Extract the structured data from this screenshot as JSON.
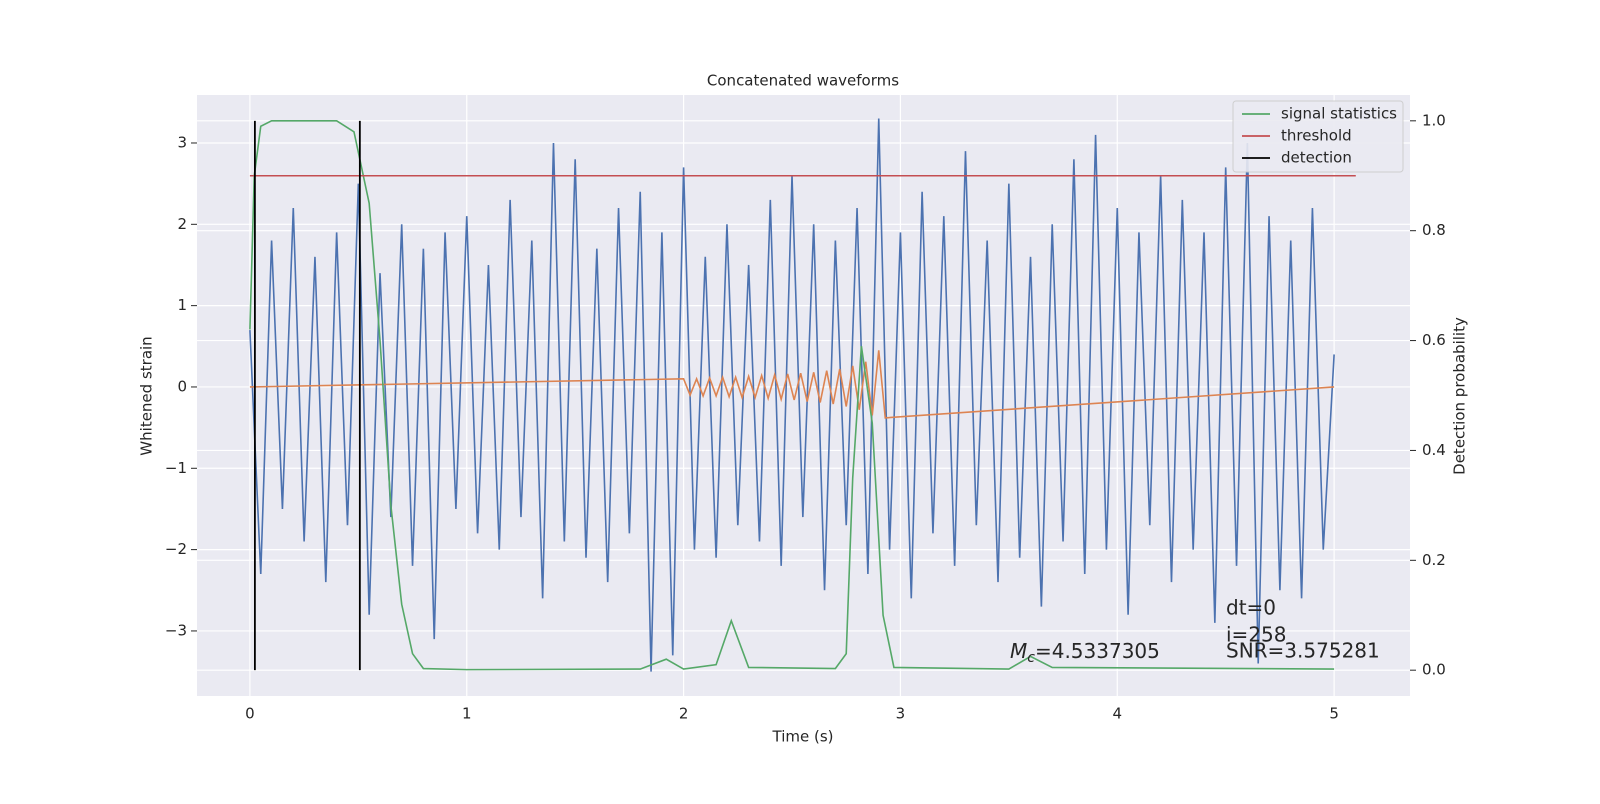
{
  "chart_data": {
    "type": "line",
    "title": "Concatenated waveforms",
    "xlabel": "Time (s)",
    "ylabel": "Whitened strain",
    "y2label": "Detection probability",
    "xlim": [
      -0.244,
      5.35
    ],
    "ylim": [
      -3.8,
      3.59
    ],
    "y2lim": [
      -0.047,
      1.047
    ],
    "xticks": [
      0,
      1,
      2,
      3,
      4,
      5
    ],
    "yticks": [
      {
        "value": -3,
        "label": "−3"
      },
      {
        "value": -2,
        "label": "−2"
      },
      {
        "value": -1,
        "label": "−1"
      },
      0,
      1,
      2,
      3
    ],
    "y2ticks": [
      {
        "value": 0,
        "label": "0.0"
      },
      0.2,
      0.4,
      0.6,
      0.8,
      {
        "value": 1,
        "label": "1.0"
      }
    ],
    "grid": true,
    "legend": "upper right",
    "series": [
      {
        "color": "#4c72b0",
        "x": [
          0,
          0.05,
          0.1,
          0.15,
          0.2,
          0.25,
          0.3,
          0.35,
          0.4,
          0.45,
          0.5,
          0.55,
          0.6,
          0.65,
          0.7,
          0.75,
          0.8,
          0.85,
          0.9,
          0.95,
          1,
          1.05,
          1.1,
          1.15,
          1.2,
          1.25,
          1.3,
          1.35,
          1.4,
          1.45,
          1.5,
          1.55,
          1.6,
          1.65,
          1.7,
          1.75,
          1.8,
          1.85,
          1.9,
          1.95,
          2,
          2.05,
          2.1,
          2.15,
          2.2,
          2.25,
          2.3,
          2.35,
          2.4,
          2.45,
          2.5,
          2.55,
          2.6,
          2.65,
          2.7,
          2.75,
          2.8,
          2.85,
          2.9,
          2.95,
          3,
          3.05,
          3.1,
          3.15,
          3.2,
          3.25,
          3.3,
          3.35,
          3.4,
          3.45,
          3.5,
          3.55,
          3.6,
          3.65,
          3.7,
          3.75,
          3.8,
          3.85,
          3.9,
          3.95,
          4,
          4.05,
          4.1,
          4.15,
          4.2,
          4.25,
          4.3,
          4.35,
          4.4,
          4.45,
          4.5,
          4.55,
          4.6,
          4.65,
          4.7,
          4.75,
          4.8,
          4.85,
          4.9,
          4.95,
          5
        ],
        "values": [
          0.7,
          -2.3,
          1.8,
          -1.5,
          2.2,
          -1.9,
          1.6,
          -2.4,
          1.9,
          -1.7,
          2.5,
          -2.8,
          1.4,
          -1.6,
          2.0,
          -2.2,
          1.7,
          -3.1,
          1.9,
          -1.5,
          2.1,
          -1.8,
          1.5,
          -2.0,
          2.3,
          -1.6,
          1.8,
          -2.6,
          3.0,
          -1.9,
          2.8,
          -2.1,
          1.7,
          -2.4,
          2.2,
          -1.8,
          2.4,
          -3.5,
          1.9,
          -3.3,
          2.7,
          -2.0,
          1.6,
          -2.1,
          2.0,
          -1.7,
          1.5,
          -1.9,
          2.3,
          -2.2,
          2.6,
          -1.6,
          2.0,
          -2.5,
          1.8,
          -1.7,
          2.2,
          -2.3,
          3.3,
          -2.0,
          1.9,
          -2.6,
          2.4,
          -1.8,
          2.1,
          -2.2,
          2.9,
          -1.7,
          1.8,
          -2.4,
          2.5,
          -2.1,
          1.6,
          -2.7,
          2.0,
          -1.9,
          2.8,
          -2.3,
          3.1,
          -2.0,
          2.2,
          -2.8,
          1.9,
          -1.7,
          2.6,
          -2.4,
          2.3,
          -2.0,
          1.9,
          -2.9,
          2.7,
          -2.2,
          3.0,
          -3.4,
          2.1,
          -2.5,
          1.8,
          -2.6,
          2.2,
          -2.0,
          0.4
        ]
      },
      {
        "color": "#dd8452",
        "x": [
          0,
          2.0,
          2.03,
          2.06,
          2.09,
          2.12,
          2.15,
          2.18,
          2.21,
          2.24,
          2.27,
          2.3,
          2.33,
          2.36,
          2.39,
          2.42,
          2.45,
          2.48,
          2.51,
          2.54,
          2.57,
          2.6,
          2.63,
          2.66,
          2.69,
          2.72,
          2.75,
          2.78,
          2.81,
          2.84,
          2.87,
          2.9,
          2.93,
          5
        ],
        "values": [
          0,
          0.1,
          -0.1,
          0.1,
          -0.11,
          0.11,
          -0.11,
          0.12,
          -0.12,
          0.12,
          -0.13,
          0.13,
          -0.13,
          0.14,
          -0.14,
          0.15,
          -0.15,
          0.16,
          -0.16,
          0.17,
          -0.18,
          0.18,
          -0.19,
          0.2,
          -0.21,
          0.22,
          -0.24,
          0.26,
          -0.28,
          0.31,
          -0.35,
          0.45,
          -0.38,
          0
        ]
      },
      {
        "name": "signal statistics",
        "color": "#55a868",
        "axis": "y2",
        "x": [
          0,
          0.02,
          0.05,
          0.1,
          0.4,
          0.48,
          0.55,
          0.6,
          0.65,
          0.7,
          0.75,
          0.8,
          1.0,
          1.8,
          1.92,
          2.0,
          2.15,
          2.22,
          2.3,
          2.7,
          2.75,
          2.78,
          2.82,
          2.87,
          2.92,
          2.97,
          3.5,
          3.6,
          3.7,
          5.0
        ],
        "values": [
          0.62,
          0.9,
          0.99,
          1.0,
          1.0,
          0.98,
          0.85,
          0.6,
          0.3,
          0.12,
          0.03,
          0.003,
          0.001,
          0.002,
          0.02,
          0.002,
          0.01,
          0.09,
          0.005,
          0.003,
          0.03,
          0.35,
          0.59,
          0.45,
          0.1,
          0.005,
          0.002,
          0.025,
          0.005,
          0.002
        ]
      },
      {
        "name": "threshold",
        "color": "#c44e52",
        "axis": "y2",
        "x": [
          0,
          5.1
        ],
        "values": [
          0.9,
          0.9
        ]
      }
    ],
    "detection": {
      "name": "detection",
      "color": "#000000",
      "x": [
        0.023,
        0.507
      ],
      "range": [
        0,
        1
      ]
    },
    "annotations": {
      "dt": "dt=0",
      "i": "i=258",
      "snr": "SNR=3.575281",
      "mc": {
        "base": "M",
        "sub": "c",
        "text": "=4.5337305"
      }
    }
  }
}
